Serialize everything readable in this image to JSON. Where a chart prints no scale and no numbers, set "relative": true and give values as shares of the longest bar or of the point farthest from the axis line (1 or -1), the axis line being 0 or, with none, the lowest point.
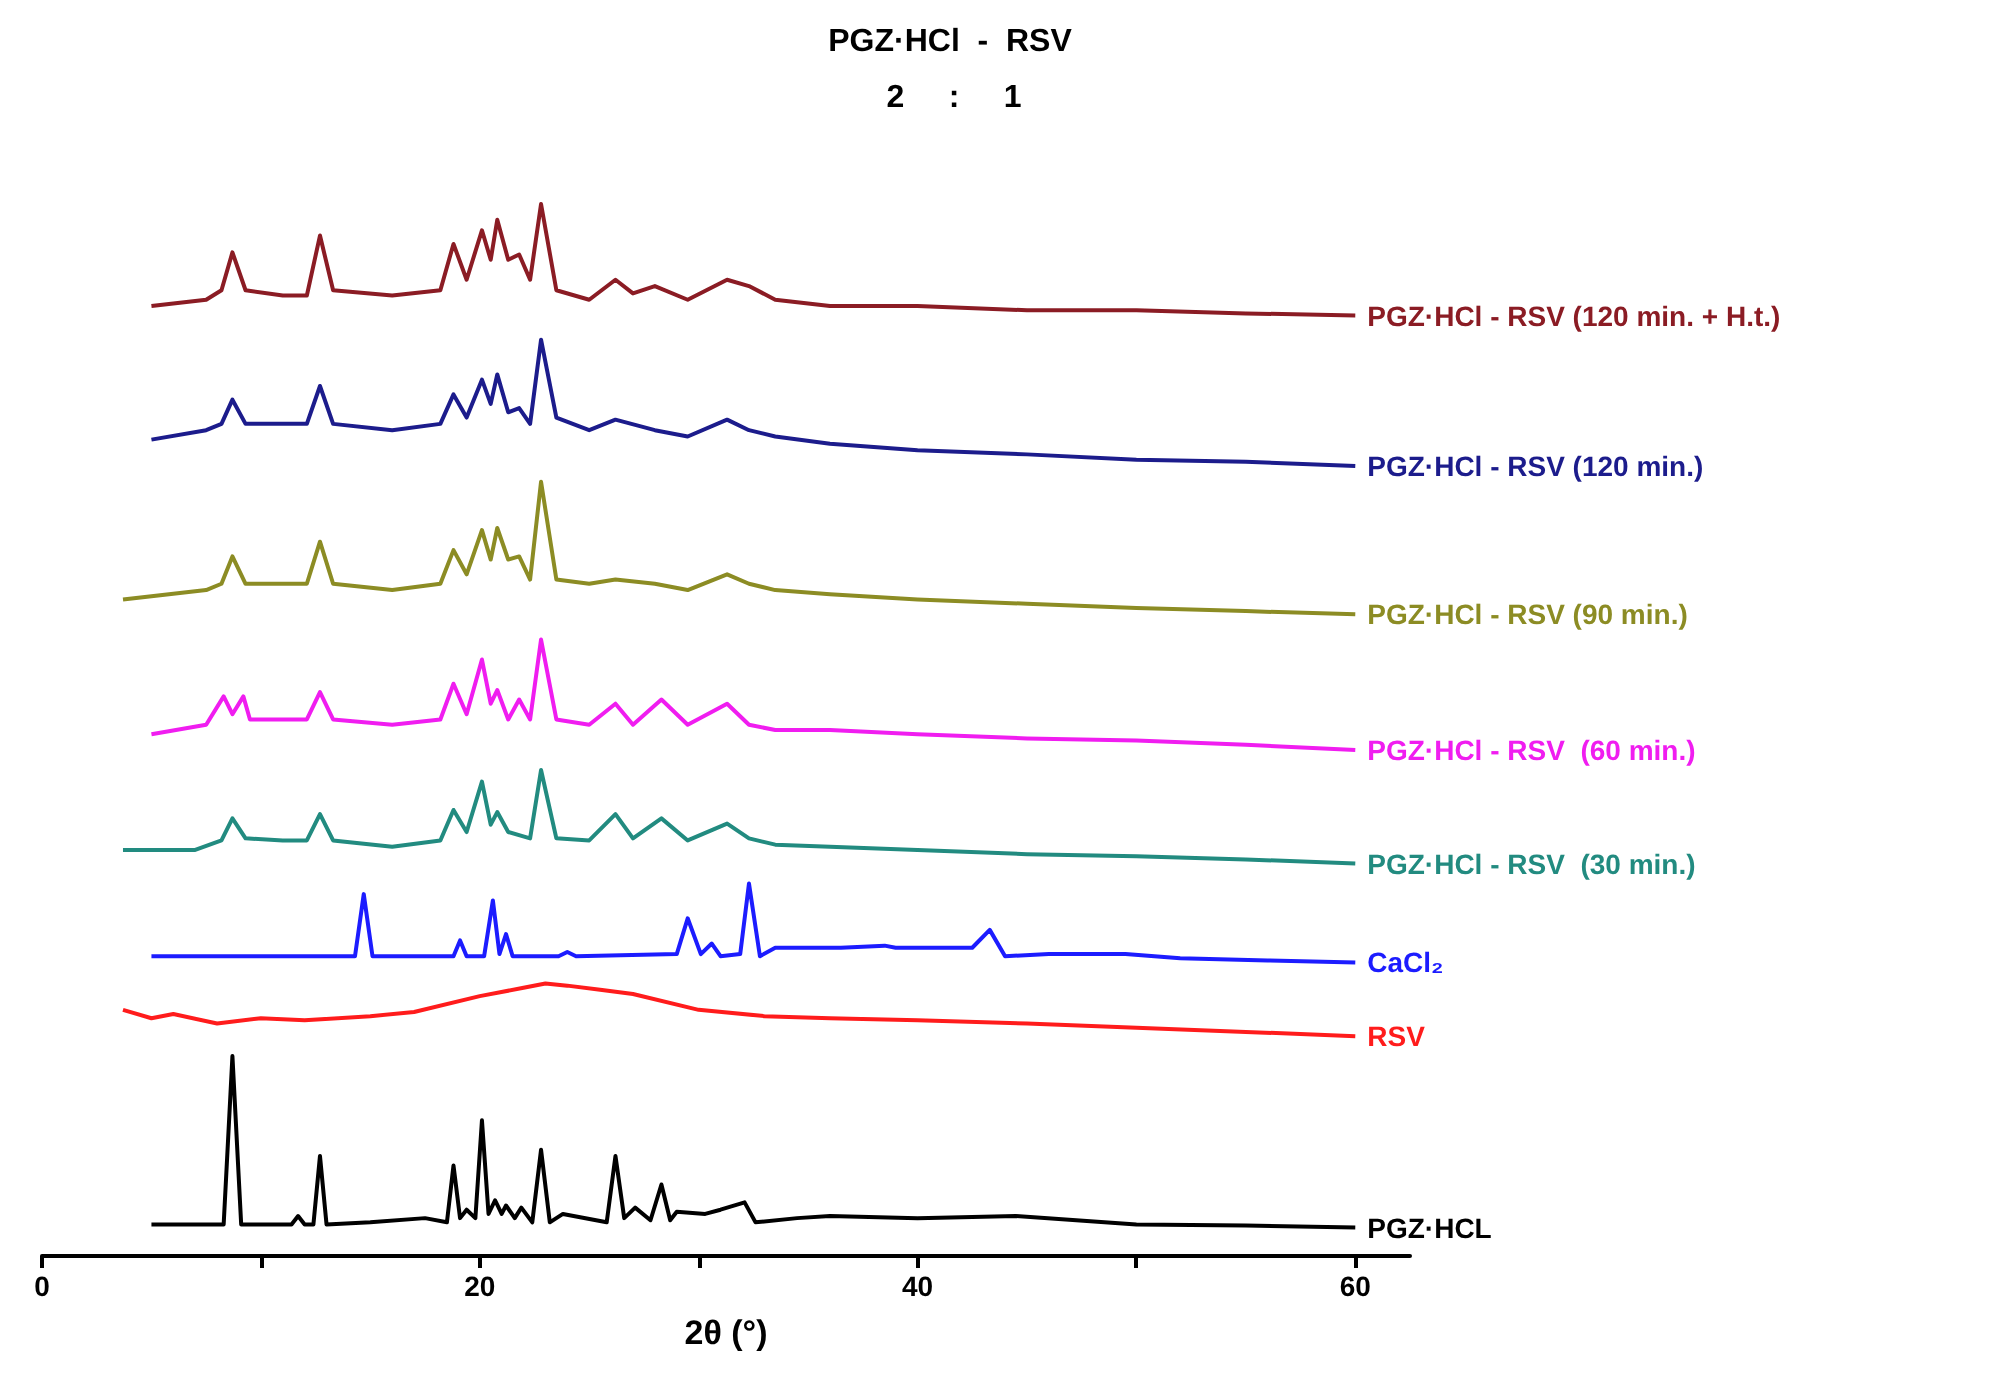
{
  "chart_data": {
    "type": "line",
    "relative": true,
    "title": "PGZ·HCl  -  RSV",
    "subtitle": "2     :     1",
    "xlabel": "2θ (°)",
    "xlim": [
      0,
      62.5
    ],
    "xticks": [
      0,
      {
        "value": 10,
        "label": null
      },
      20,
      {
        "value": 30,
        "label": null
      },
      40,
      {
        "value": 50,
        "label": null
      },
      60
    ],
    "grid": false,
    "legend": false,
    "marker": "none",
    "line_style": "solid",
    "series": [
      {
        "name": "PGZ·HCl - RSV (120 min. + H.t.)",
        "color": "#8b1c24",
        "x": [
          5,
          7.5,
          8.2,
          8.7,
          9.3,
          11,
          12.1,
          12.7,
          13.3,
          16,
          18.2,
          18.8,
          19.4,
          20.1,
          20.5,
          20.8,
          21.3,
          21.8,
          22.3,
          22.8,
          23.5,
          25,
          26.2,
          27,
          28,
          29.5,
          31.3,
          32.3,
          33.5,
          36,
          40,
          45,
          50,
          55,
          60
        ],
        "values": [
          0.903,
          0.909,
          0.918,
          0.954,
          0.918,
          0.913,
          0.913,
          0.97,
          0.918,
          0.913,
          0.918,
          0.962,
          0.928,
          0.975,
          0.947,
          0.985,
          0.947,
          0.952,
          0.928,
          1.0,
          0.918,
          0.909,
          0.928,
          0.915,
          0.922,
          0.909,
          0.928,
          0.922,
          0.909,
          0.903,
          0.903,
          0.899,
          0.899,
          0.896,
          0.894
        ]
      },
      {
        "name": "PGZ·HCl - RSV (120 min.)",
        "color": "#1c1c8c",
        "x": [
          5,
          7.5,
          8.2,
          8.7,
          9.3,
          11,
          12.1,
          12.7,
          13.3,
          16,
          18.2,
          18.8,
          19.4,
          20.1,
          20.5,
          20.8,
          21.3,
          21.8,
          22.3,
          22.8,
          23.5,
          25,
          26.2,
          28,
          29.5,
          31.3,
          32.3,
          33.5,
          36,
          40,
          45,
          50,
          55,
          60
        ],
        "values": [
          0.776,
          0.785,
          0.791,
          0.814,
          0.791,
          0.791,
          0.791,
          0.827,
          0.791,
          0.785,
          0.791,
          0.819,
          0.797,
          0.833,
          0.81,
          0.838,
          0.802,
          0.806,
          0.791,
          0.871,
          0.797,
          0.785,
          0.795,
          0.785,
          0.779,
          0.795,
          0.785,
          0.779,
          0.772,
          0.766,
          0.762,
          0.757,
          0.755,
          0.751
        ]
      },
      {
        "name": "PGZ·HCl - RSV (90 min.)",
        "color": "#8c8c24",
        "x": [
          3.7,
          7.5,
          8.2,
          8.7,
          9.3,
          11,
          12.1,
          12.7,
          13.3,
          16,
          18.2,
          18.8,
          19.4,
          20.1,
          20.5,
          20.8,
          21.3,
          21.8,
          22.3,
          22.8,
          23.5,
          25,
          26.2,
          28,
          29.5,
          31.3,
          32.3,
          33.5,
          36,
          40,
          45,
          50,
          55,
          60
        ],
        "values": [
          0.624,
          0.633,
          0.639,
          0.665,
          0.639,
          0.639,
          0.639,
          0.679,
          0.639,
          0.633,
          0.639,
          0.671,
          0.648,
          0.69,
          0.662,
          0.692,
          0.662,
          0.665,
          0.643,
          0.736,
          0.643,
          0.639,
          0.643,
          0.639,
          0.633,
          0.648,
          0.639,
          0.633,
          0.629,
          0.624,
          0.62,
          0.616,
          0.613,
          0.61
        ]
      },
      {
        "name": "PGZ·HCl - RSV  (60 min.)",
        "color": "#f01df0",
        "x": [
          5,
          7.5,
          8.3,
          8.7,
          9.2,
          9.5,
          11,
          12.1,
          12.7,
          13.3,
          16,
          18.2,
          18.8,
          19.4,
          20.1,
          20.5,
          20.8,
          21.3,
          21.8,
          22.3,
          22.8,
          23.5,
          25,
          26.2,
          27,
          28.3,
          29.5,
          31.3,
          32.3,
          33.5,
          36,
          40,
          45,
          50,
          55,
          60
        ],
        "values": [
          0.496,
          0.505,
          0.532,
          0.515,
          0.532,
          0.51,
          0.51,
          0.51,
          0.536,
          0.51,
          0.505,
          0.51,
          0.544,
          0.515,
          0.567,
          0.525,
          0.538,
          0.51,
          0.529,
          0.51,
          0.586,
          0.51,
          0.505,
          0.525,
          0.505,
          0.529,
          0.505,
          0.525,
          0.505,
          0.5,
          0.5,
          0.496,
          0.492,
          0.49,
          0.486,
          0.481
        ]
      },
      {
        "name": "PGZ·HCl - RSV  (30 min.)",
        "color": "#228b80",
        "x": [
          3.7,
          7,
          8.2,
          8.7,
          9.3,
          11,
          12.1,
          12.7,
          13.3,
          16,
          18.2,
          18.8,
          19.4,
          20.1,
          20.5,
          20.8,
          21.3,
          22.3,
          22.8,
          23.5,
          25,
          26.2,
          27,
          28.3,
          29.5,
          31.3,
          32.3,
          33.5,
          36,
          40,
          45,
          50,
          55,
          60
        ],
        "values": [
          0.386,
          0.386,
          0.395,
          0.416,
          0.397,
          0.395,
          0.395,
          0.42,
          0.395,
          0.389,
          0.395,
          0.424,
          0.403,
          0.451,
          0.41,
          0.422,
          0.403,
          0.397,
          0.462,
          0.397,
          0.395,
          0.42,
          0.397,
          0.416,
          0.395,
          0.411,
          0.397,
          0.391,
          0.389,
          0.386,
          0.382,
          0.38,
          0.377,
          0.373
        ]
      },
      {
        "name": "CaCl₂",
        "color": "#1c1cff",
        "x": [
          5,
          14.3,
          14.7,
          15.1,
          18.8,
          19.1,
          19.4,
          20.2,
          20.6,
          20.9,
          21.2,
          21.5,
          23.6,
          24,
          24.4,
          29,
          29.5,
          30.1,
          30.6,
          31,
          31.9,
          32.3,
          32.8,
          33.5,
          36.5,
          38.5,
          39,
          42.5,
          43.3,
          44,
          46,
          49.5,
          52,
          56,
          60
        ],
        "values": [
          0.285,
          0.285,
          0.344,
          0.285,
          0.285,
          0.3,
          0.285,
          0.285,
          0.338,
          0.287,
          0.306,
          0.285,
          0.285,
          0.289,
          0.285,
          0.287,
          0.321,
          0.287,
          0.297,
          0.285,
          0.287,
          0.354,
          0.285,
          0.293,
          0.293,
          0.295,
          0.293,
          0.293,
          0.31,
          0.285,
          0.287,
          0.287,
          0.283,
          0.281,
          0.279
        ]
      },
      {
        "name": "RSV",
        "color": "#ff1c1c",
        "x": [
          3.7,
          5,
          6,
          8,
          10,
          12,
          15,
          17,
          20,
          22,
          23,
          24,
          25.5,
          27,
          30,
          33,
          36,
          40,
          45,
          50,
          55,
          60
        ],
        "values": [
          0.234,
          0.226,
          0.23,
          0.221,
          0.226,
          0.224,
          0.228,
          0.232,
          0.247,
          0.255,
          0.259,
          0.257,
          0.253,
          0.249,
          0.234,
          0.228,
          0.226,
          0.224,
          0.221,
          0.217,
          0.213,
          0.209
        ]
      },
      {
        "name": "PGZ·HCL",
        "color": "#000000",
        "x": [
          5,
          8.3,
          8.7,
          9.1,
          11.4,
          11.7,
          12,
          12.4,
          12.7,
          13,
          15,
          17.5,
          18.5,
          18.8,
          19.1,
          19.4,
          19.8,
          20.1,
          20.4,
          20.7,
          21,
          21.2,
          21.6,
          21.9,
          22.4,
          22.8,
          23.2,
          23.8,
          25.8,
          26.2,
          26.6,
          27.1,
          27.8,
          28.3,
          28.7,
          29,
          30.3,
          31,
          32.1,
          32.6,
          34.5,
          36,
          40,
          44.5,
          50,
          55,
          60
        ],
        "values": [
          0.03,
          0.03,
          0.19,
          0.03,
          0.03,
          0.038,
          0.03,
          0.03,
          0.095,
          0.03,
          0.032,
          0.036,
          0.032,
          0.086,
          0.036,
          0.044,
          0.036,
          0.129,
          0.04,
          0.053,
          0.04,
          0.048,
          0.036,
          0.046,
          0.032,
          0.101,
          0.032,
          0.04,
          0.032,
          0.095,
          0.036,
          0.046,
          0.034,
          0.068,
          0.034,
          0.042,
          0.04,
          0.044,
          0.051,
          0.032,
          0.036,
          0.038,
          0.036,
          0.038,
          0.03,
          0.029,
          0.027
        ]
      }
    ]
  }
}
